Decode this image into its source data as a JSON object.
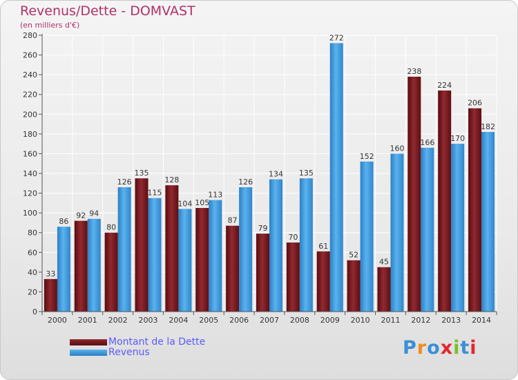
{
  "title": "Revenus/Dette - DOMVAST",
  "subtitle": "(en milliers d'€)",
  "logo": {
    "text": "Proxiti",
    "colors": [
      "#3a8fd8",
      "#f08a1c",
      "#3a8fd8",
      "#e2262e",
      "#7bbf2a",
      "#3a8fd8",
      "#e2262e"
    ]
  },
  "chart_data": {
    "type": "bar",
    "categories": [
      "2000",
      "2001",
      "2002",
      "2003",
      "2004",
      "2005",
      "2006",
      "2007",
      "2008",
      "2009",
      "2010",
      "2011",
      "2012",
      "2013",
      "2014"
    ],
    "series": [
      {
        "name": "Montant de la Dette",
        "color": "#7a1a1e",
        "values": [
          33,
          92,
          80,
          135,
          128,
          105,
          87,
          79,
          70,
          61,
          52,
          45,
          238,
          224,
          206
        ]
      },
      {
        "name": "Revenus",
        "color": "#3a98e0",
        "values": [
          86,
          94,
          126,
          115,
          104,
          113,
          126,
          134,
          135,
          272,
          152,
          160,
          166,
          170,
          182
        ]
      }
    ],
    "ylim": [
      0,
      280
    ],
    "yticks": [
      0,
      20,
      40,
      60,
      80,
      100,
      120,
      140,
      160,
      180,
      200,
      220,
      240,
      260,
      280
    ],
    "grid": true,
    "legend": "bottom-left"
  }
}
